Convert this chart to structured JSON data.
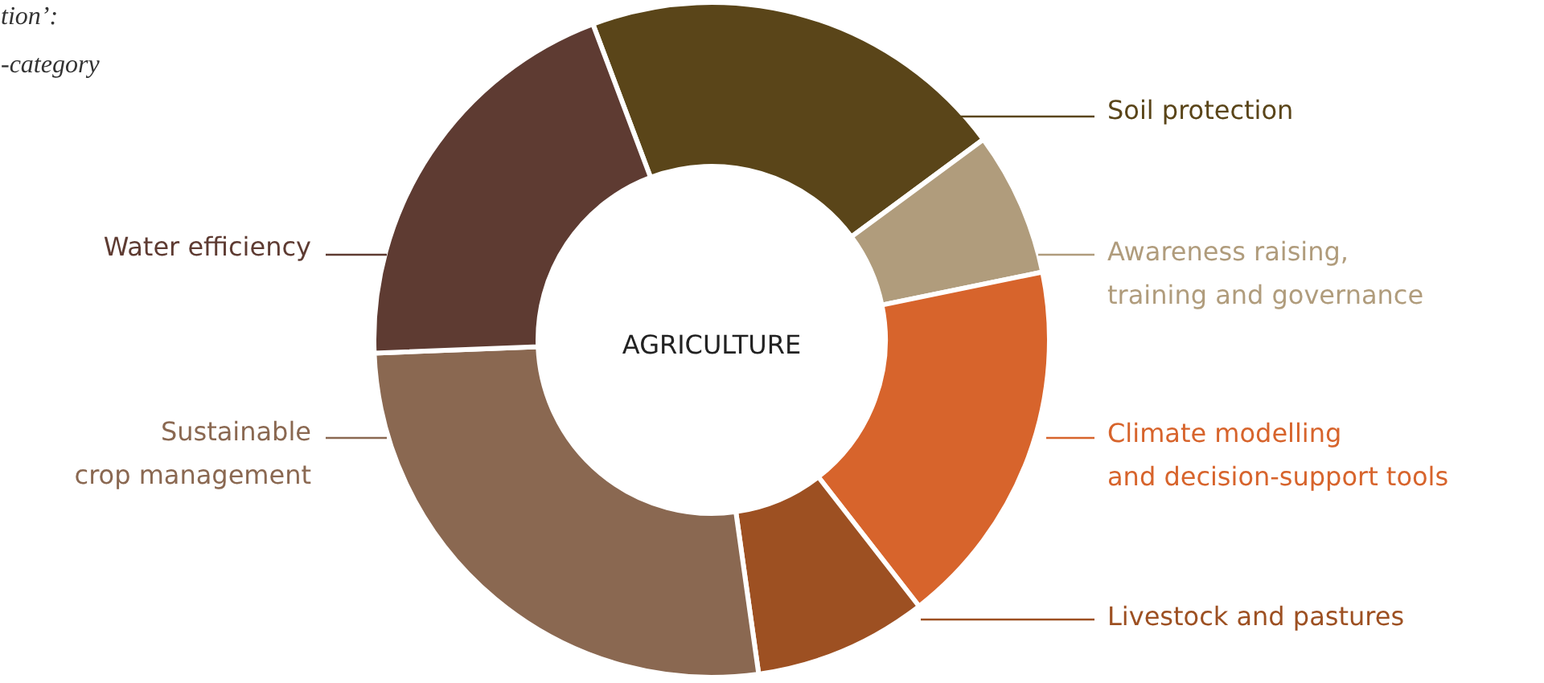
{
  "chart_data": {
    "type": "donut",
    "title": "AGRICULTURE",
    "categories": [
      "Soil protection",
      "Awareness raising,\ntraining and governance",
      "Climate modelling\nand decision-support tools",
      "Livestock and pastures",
      "Sustainable\ncrop management",
      "Water efficiency"
    ],
    "values": [
      20.6,
      6.9,
      17.7,
      8.3,
      26.6,
      19.9
    ],
    "colors": [
      "#5a4519",
      "#b09c7c",
      "#d7642c",
      "#9d5022",
      "#8a6851",
      "#5e3b32"
    ],
    "annotations": [
      "tion’:",
      "-category"
    ]
  }
}
